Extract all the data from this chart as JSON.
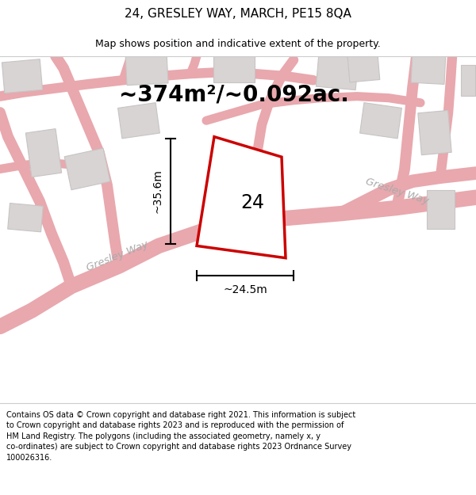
{
  "title": "24, GRESLEY WAY, MARCH, PE15 8QA",
  "subtitle": "Map shows position and indicative extent of the property.",
  "area_text": "~374m²/~0.092ac.",
  "label_24": "24",
  "dim_width": "~24.5m",
  "dim_height": "~35.6m",
  "street_label_1": "Gresley Way",
  "street_label_2": "Gresley Way",
  "footer": "Contains OS data © Crown copyright and database right 2021. This information is subject to Crown copyright and database rights 2023 and is reproduced with the permission of HM Land Registry. The polygons (including the associated geometry, namely x, y co-ordinates) are subject to Crown copyright and database rights 2023 Ordnance Survey 100026316.",
  "map_bg": "#f7f5f5",
  "road_color": "#e8a8ae",
  "building_fill": "#d8d4d4",
  "building_edge": "#c8c4c4",
  "plot_color": "#cc0000",
  "plot_fill": "#ffffff",
  "title_fontsize": 11,
  "subtitle_fontsize": 9,
  "area_fontsize": 20,
  "label_fontsize": 17,
  "footer_fontsize": 7.0,
  "street_fontsize": 9.5,
  "dim_fontsize": 10
}
